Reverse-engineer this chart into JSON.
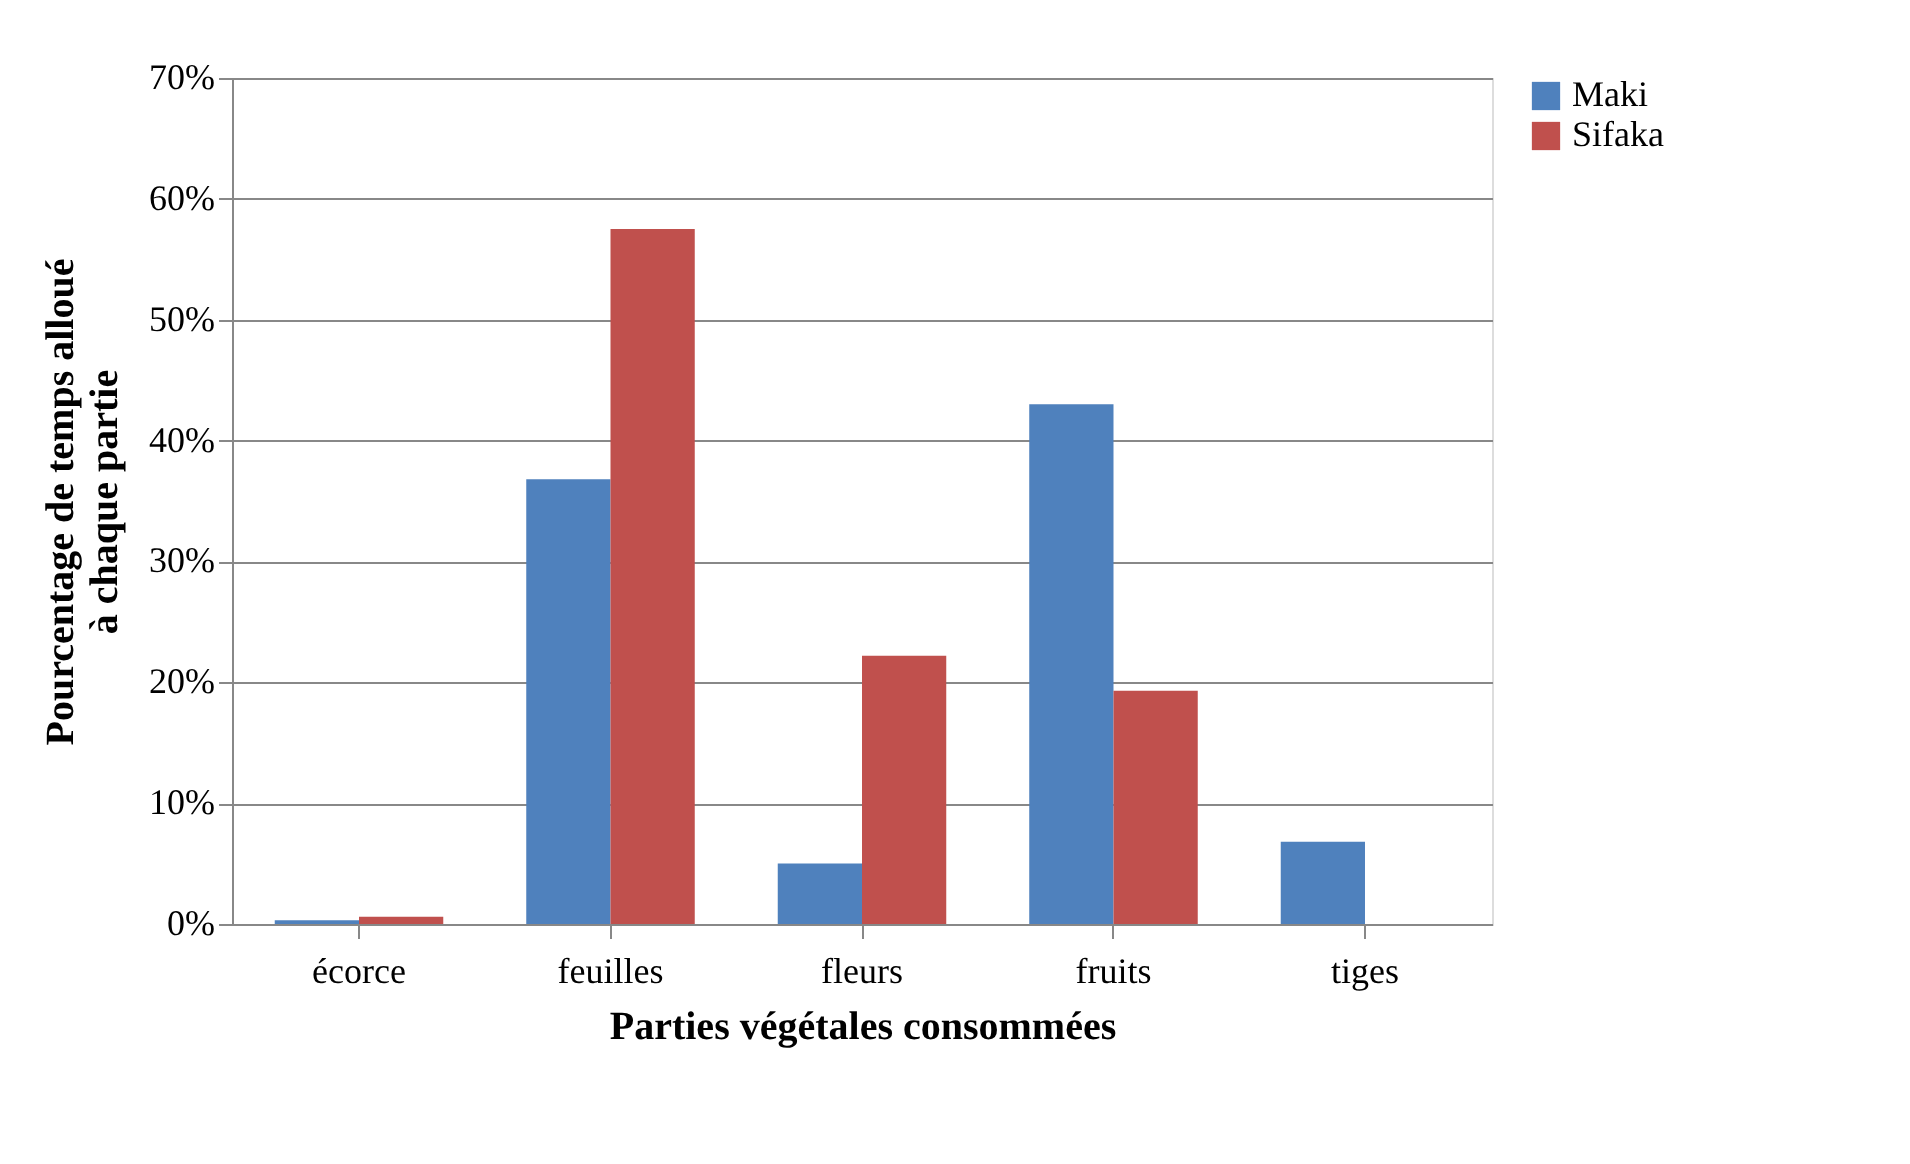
{
  "chart_data": {
    "type": "bar",
    "xlabel": "Parties végétales consommées",
    "ylabel": "Pourcentage de temps alloué à chaque partie",
    "categories": [
      "écorce",
      "feuilles",
      "fleurs",
      "fruits",
      "tiges"
    ],
    "series": [
      {
        "name": "Maki",
        "color": "#4f81bd",
        "values": [
          0.3,
          36.8,
          5.0,
          43.0,
          6.8
        ]
      },
      {
        "name": "Sifaka",
        "color": "#c0504d",
        "values": [
          0.6,
          57.5,
          22.2,
          19.3,
          0
        ]
      }
    ],
    "ylim": [
      0,
      70
    ],
    "yticks": [
      {
        "value": 0,
        "label": "0%"
      },
      {
        "value": 10,
        "label": "10%"
      },
      {
        "value": 20,
        "label": "20%"
      },
      {
        "value": 30,
        "label": "30%"
      },
      {
        "value": 40,
        "label": "40%"
      },
      {
        "value": 50,
        "label": "50%"
      },
      {
        "value": 60,
        "label": "60%"
      },
      {
        "value": 70,
        "label": "70%"
      }
    ],
    "grid": "y",
    "legend": "right"
  }
}
